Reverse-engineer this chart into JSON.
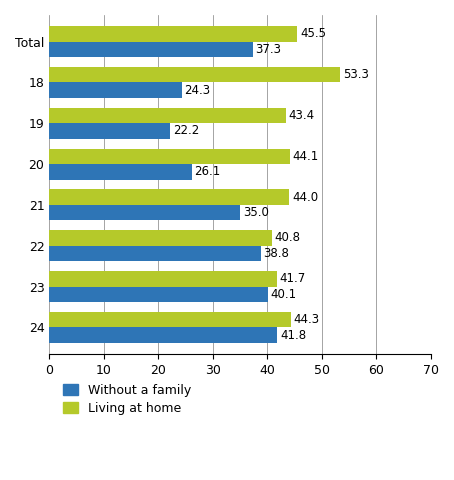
{
  "categories": [
    "24",
    "23",
    "22",
    "21",
    "20",
    "19",
    "18",
    "Total"
  ],
  "living_at_home": [
    44.3,
    41.7,
    40.8,
    44.0,
    44.1,
    43.4,
    53.3,
    45.5
  ],
  "without_family": [
    41.8,
    40.1,
    38.8,
    35.0,
    26.1,
    22.2,
    24.3,
    37.3
  ],
  "color_living": "#b5c92a",
  "color_family": "#2e75b6",
  "xlim": [
    0,
    70
  ],
  "xticks": [
    0,
    10,
    20,
    30,
    40,
    50,
    60,
    70
  ],
  "bar_height": 0.38,
  "legend_labels": [
    "Without a family",
    "Living at home"
  ],
  "label_fontsize": 9,
  "tick_fontsize": 9,
  "value_fontsize": 8.5
}
